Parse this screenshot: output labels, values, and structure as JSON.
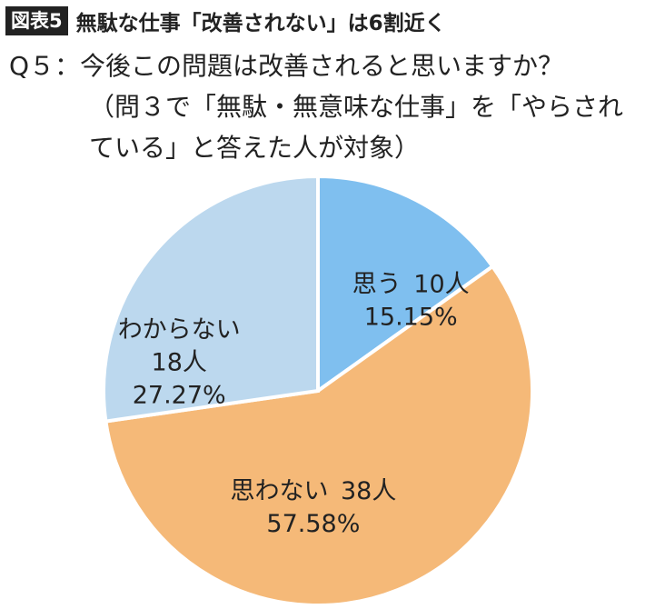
{
  "header": {
    "badge": "図表5",
    "title": "無駄な仕事「改善されない」は6割近く"
  },
  "question": {
    "line1": "Q５：今後この問題は改善されると思いますか？",
    "line2": "（問３で「無駄・無意味な仕事」を「やらされ",
    "line3": "ている」と答えた人が対象）"
  },
  "chart_data": {
    "type": "pie",
    "start_angle_deg": 0,
    "direction": "clockwise",
    "slices": [
      {
        "label": "思う",
        "count_label": "10人",
        "count": 10,
        "percent": 15.15,
        "percent_label": "15.15%",
        "color": "#7fbfef"
      },
      {
        "label": "思わない",
        "count_label": "38人",
        "count": 38,
        "percent": 57.58,
        "percent_label": "57.58%",
        "color": "#f5b978"
      },
      {
        "label": "わからない",
        "count_label": "18人",
        "count": 18,
        "percent": 27.27,
        "percent_label": "27.27%",
        "color": "#bcd8ee"
      }
    ]
  }
}
